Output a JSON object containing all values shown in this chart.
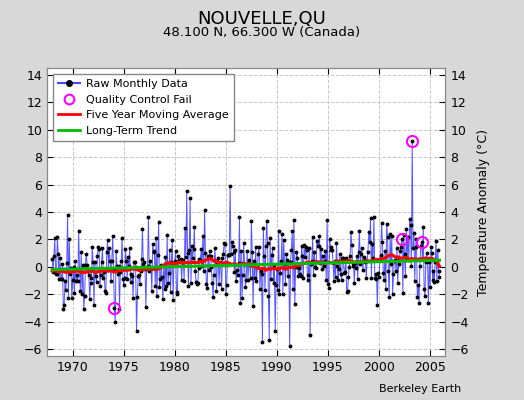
{
  "title": "NOUVELLE,QU",
  "subtitle": "48.100 N, 66.300 W (Canada)",
  "ylabel": "Temperature Anomaly (°C)",
  "attribution": "Berkeley Earth",
  "xlim": [
    1967.5,
    2006.5
  ],
  "ylim": [
    -6.5,
    14.5
  ],
  "yticks": [
    -6,
    -4,
    -2,
    0,
    2,
    4,
    6,
    8,
    10,
    12,
    14
  ],
  "xticks": [
    1970,
    1975,
    1980,
    1985,
    1990,
    1995,
    2000,
    2005
  ],
  "fig_bg_color": "#d8d8d8",
  "plot_bg_color": "#ffffff",
  "grid_color": "#c8c8c8",
  "line_color_raw": "#4444ff",
  "line_color_ma": "#ff0000",
  "line_color_trend": "#00bb00",
  "marker_color": "#000000",
  "qc_fail_color": "#ff00ff",
  "seed": 42,
  "n_years": 38,
  "start_year": 1968
}
